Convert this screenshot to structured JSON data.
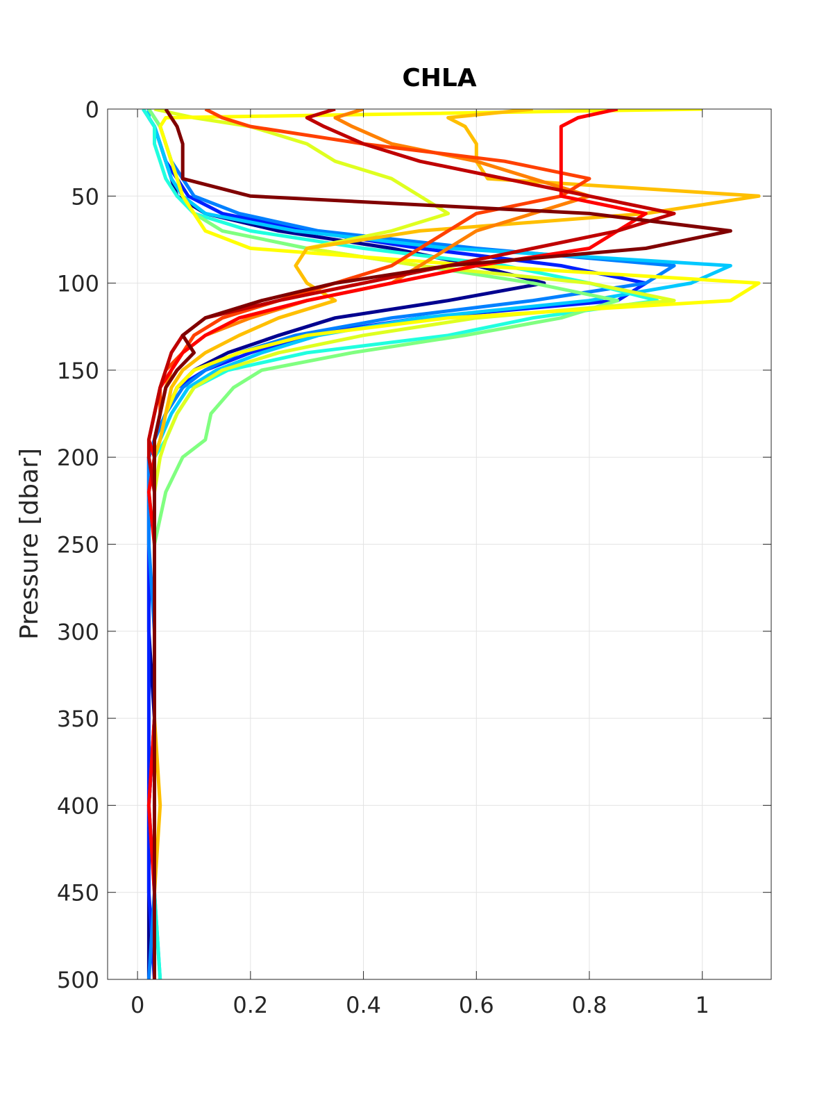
{
  "chart_data": {
    "type": "line",
    "title": "CHLA",
    "y_label": "Pressure [dbar]",
    "xlim": [
      -0.053,
      1.122
    ],
    "xticks": [
      0,
      0.2,
      0.4,
      0.6,
      0.8,
      1
    ],
    "ylim": [
      0,
      500
    ],
    "yticks": [
      0,
      50,
      100,
      150,
      200,
      250,
      300,
      350,
      400,
      450,
      500
    ],
    "y_reversed": true,
    "grid": true,
    "y": [
      0,
      5,
      10,
      20,
      30,
      40,
      50,
      60,
      70,
      80,
      90,
      100,
      110,
      120,
      130,
      140,
      150,
      160,
      175,
      190,
      200,
      220,
      250,
      300,
      350,
      400,
      450,
      500
    ],
    "series": [
      {
        "color": "#00008f",
        "values": [
          0.02,
          0.02,
          0.03,
          0.04,
          0.05,
          0.06,
          0.07,
          0.12,
          0.25,
          0.45,
          0.6,
          0.72,
          0.55,
          0.35,
          0.25,
          0.16,
          0.1,
          0.07,
          0.05,
          0.03,
          0.02,
          0.02,
          0.02,
          0.02,
          0.03,
          0.02,
          0.02,
          0.02
        ]
      },
      {
        "color": "#0020ff",
        "values": [
          0.01,
          0.02,
          0.03,
          0.04,
          0.05,
          0.07,
          0.09,
          0.15,
          0.3,
          0.5,
          0.75,
          0.9,
          0.85,
          0.5,
          0.3,
          0.2,
          0.12,
          0.07,
          0.05,
          0.03,
          0.02,
          0.02,
          0.02,
          0.02,
          0.02,
          0.02,
          0.02,
          0.03
        ]
      },
      {
        "color": "#0080ff",
        "values": [
          0.02,
          0.03,
          0.04,
          0.05,
          0.06,
          0.08,
          0.1,
          0.18,
          0.32,
          0.6,
          0.95,
          0.9,
          0.7,
          0.45,
          0.28,
          0.18,
          0.12,
          0.08,
          0.05,
          0.03,
          0.02,
          0.02,
          0.02,
          0.03,
          0.03,
          0.02,
          0.03,
          0.02
        ]
      },
      {
        "color": "#00c8ff",
        "values": [
          0.02,
          0.02,
          0.03,
          0.04,
          0.05,
          0.06,
          0.08,
          0.12,
          0.28,
          0.55,
          1.05,
          0.98,
          0.8,
          0.5,
          0.32,
          0.22,
          0.14,
          0.09,
          0.06,
          0.04,
          0.03,
          0.03,
          0.03,
          0.03,
          0.03,
          0.03,
          0.03,
          0.04
        ]
      },
      {
        "color": "#20ffdf",
        "values": [
          0.01,
          0.02,
          0.03,
          0.03,
          0.04,
          0.05,
          0.07,
          0.1,
          0.2,
          0.4,
          0.65,
          0.8,
          0.92,
          0.7,
          0.55,
          0.3,
          0.16,
          0.1,
          0.07,
          0.05,
          0.03,
          0.02,
          0.03,
          0.03,
          0.03,
          0.03,
          0.03,
          0.04
        ]
      },
      {
        "color": "#80ff80",
        "values": [
          0.02,
          0.03,
          0.04,
          0.05,
          0.06,
          0.07,
          0.08,
          0.1,
          0.15,
          0.3,
          0.5,
          0.7,
          0.85,
          0.75,
          0.58,
          0.38,
          0.22,
          0.17,
          0.13,
          0.12,
          0.08,
          0.05,
          0.03,
          0.03,
          0.03,
          0.03,
          0.03,
          0.03
        ]
      },
      {
        "color": "#dfff20",
        "values": [
          0.03,
          0.1,
          0.2,
          0.3,
          0.35,
          0.45,
          0.5,
          0.55,
          0.45,
          0.3,
          0.5,
          0.8,
          0.95,
          0.6,
          0.4,
          0.25,
          0.15,
          0.1,
          0.07,
          0.05,
          0.04,
          0.03,
          0.03,
          0.03,
          0.03,
          0.03,
          0.03,
          0.03
        ]
      },
      {
        "color": "#ffff00",
        "values": [
          1.0,
          0.05,
          0.04,
          0.05,
          0.06,
          0.07,
          0.08,
          0.1,
          0.12,
          0.2,
          0.6,
          1.1,
          1.05,
          0.55,
          0.3,
          0.18,
          0.1,
          0.07,
          0.05,
          0.04,
          0.03,
          0.03,
          0.03,
          0.03,
          0.03,
          0.03,
          0.03,
          0.03
        ]
      },
      {
        "color": "#ffbf00",
        "values": [
          0.7,
          0.55,
          0.58,
          0.6,
          0.6,
          0.62,
          1.1,
          0.9,
          0.5,
          0.3,
          0.28,
          0.3,
          0.35,
          0.25,
          0.18,
          0.12,
          0.08,
          0.06,
          0.05,
          0.04,
          0.03,
          0.03,
          0.03,
          0.03,
          0.03,
          0.04,
          0.03,
          0.03
        ]
      },
      {
        "color": "#ff8000",
        "values": [
          0.4,
          0.35,
          0.38,
          0.45,
          0.6,
          0.7,
          0.8,
          0.7,
          0.6,
          0.55,
          0.5,
          0.45,
          0.3,
          0.2,
          0.12,
          0.08,
          0.06,
          0.05,
          0.04,
          0.03,
          0.03,
          0.03,
          0.03,
          0.03,
          0.03,
          0.03,
          0.03,
          0.03
        ]
      },
      {
        "color": "#ff4000",
        "values": [
          0.12,
          0.15,
          0.2,
          0.4,
          0.65,
          0.8,
          0.75,
          0.6,
          0.55,
          0.5,
          0.45,
          0.35,
          0.25,
          0.15,
          0.1,
          0.08,
          0.05,
          0.04,
          0.04,
          0.03,
          0.03,
          0.03,
          0.03,
          0.03,
          0.03,
          0.03,
          0.03,
          0.03
        ]
      },
      {
        "color": "#ff0000",
        "values": [
          0.85,
          0.78,
          0.75,
          0.75,
          0.75,
          0.75,
          0.75,
          0.9,
          0.85,
          0.8,
          0.6,
          0.45,
          0.3,
          0.18,
          0.12,
          0.08,
          0.06,
          0.04,
          0.03,
          0.02,
          0.03,
          0.02,
          0.03,
          0.03,
          0.03,
          0.02,
          0.03,
          0.03
        ]
      },
      {
        "color": "#bf0000",
        "values": [
          0.35,
          0.3,
          0.33,
          0.4,
          0.5,
          0.65,
          0.8,
          0.95,
          0.85,
          0.7,
          0.55,
          0.4,
          0.25,
          0.12,
          0.08,
          0.06,
          0.05,
          0.04,
          0.03,
          0.02,
          0.02,
          0.03,
          0.03,
          0.03,
          0.03,
          0.03,
          0.03,
          0.03
        ]
      },
      {
        "color": "#800000",
        "values": [
          0.05,
          0.06,
          0.07,
          0.08,
          0.08,
          0.08,
          0.2,
          0.8,
          1.05,
          0.9,
          0.55,
          0.35,
          0.22,
          0.12,
          0.08,
          0.1,
          0.07,
          0.05,
          0.04,
          0.03,
          0.03,
          0.03,
          0.03,
          0.03,
          0.03,
          0.03,
          0.03,
          0.03
        ]
      }
    ]
  }
}
